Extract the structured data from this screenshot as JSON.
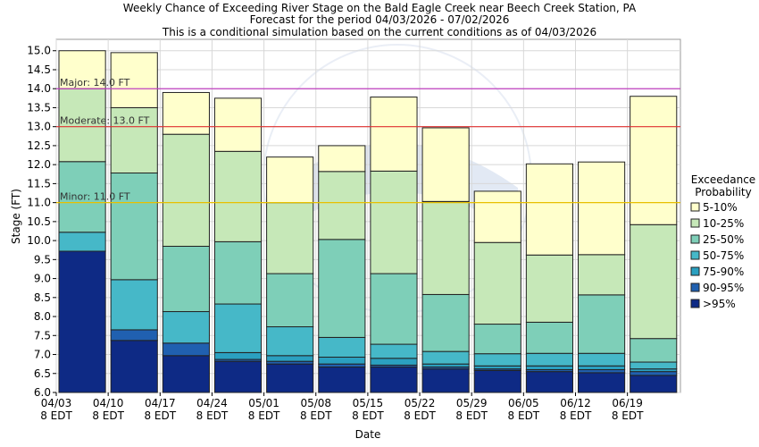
{
  "title_lines": [
    "Weekly Chance of Exceeding River Stage on the Bald Eagle Creek near Beech Creek Station, PA",
    "Forecast for the period 04/03/2026 - 07/02/2026",
    "This is a conditional simulation based on the current conditions as of 04/03/2026"
  ],
  "chart_data": {
    "type": "bar",
    "stacked": true,
    "xlabel": "Date",
    "ylabel": "Stage (FT)",
    "ylim": [
      6.0,
      15.3
    ],
    "yticks": [
      6.0,
      6.5,
      7.0,
      7.5,
      8.0,
      8.5,
      9.0,
      9.5,
      10.0,
      10.5,
      11.0,
      11.5,
      12.0,
      12.5,
      13.0,
      13.5,
      14.0,
      14.5,
      15.0
    ],
    "ytick_labels": [
      "6.0",
      "6.5",
      "7.0",
      "7.5",
      "8.0",
      "8.5",
      "9.0",
      "9.5",
      "10.0",
      "10.5",
      "11.0",
      "11.5",
      "12.0",
      "12.5",
      "13.0",
      "13.5",
      "14.0",
      "14.5",
      "15.0"
    ],
    "xtick_labels": [
      [
        "04/03",
        "8 EDT"
      ],
      [
        "04/10",
        "8 EDT"
      ],
      [
        "04/17",
        "8 EDT"
      ],
      [
        "04/24",
        "8 EDT"
      ],
      [
        "05/01",
        "8 EDT"
      ],
      [
        "05/08",
        "8 EDT"
      ],
      [
        "05/15",
        "8 EDT"
      ],
      [
        "05/22",
        "8 EDT"
      ],
      [
        "05/29",
        "8 EDT"
      ],
      [
        "06/05",
        "8 EDT"
      ],
      [
        "06/12",
        "8 EDT"
      ],
      [
        "06/19",
        "8 EDT"
      ]
    ],
    "grid": true,
    "legend_title": [
      "Exceedance",
      "Probability"
    ],
    "legend_position": "right",
    "series": [
      {
        "name": ">95%",
        "color": "#0e2a85",
        "tops": [
          9.72,
          7.37,
          6.97,
          6.82,
          6.75,
          6.67,
          6.67,
          6.62,
          6.58,
          6.55,
          6.52,
          6.45
        ]
      },
      {
        "name": "90-95%",
        "color": "#2060b0",
        "tops": [
          9.72,
          7.65,
          7.3,
          6.87,
          6.82,
          6.75,
          6.72,
          6.67,
          6.62,
          6.6,
          6.6,
          6.55
        ]
      },
      {
        "name": "75-90%",
        "color": "#2ba0c0",
        "tops": [
          9.72,
          7.65,
          7.3,
          7.05,
          6.97,
          6.93,
          6.9,
          6.75,
          6.7,
          6.7,
          6.7,
          6.62
        ]
      },
      {
        "name": "50-75%",
        "color": "#46b8c8",
        "tops": [
          10.22,
          8.97,
          8.13,
          8.33,
          7.73,
          7.45,
          7.27,
          7.08,
          7.02,
          7.03,
          7.03,
          6.8
        ]
      },
      {
        "name": "25-50%",
        "color": "#7ecfb8",
        "tops": [
          12.08,
          11.78,
          9.85,
          9.97,
          9.13,
          10.03,
          9.13,
          8.58,
          7.8,
          7.85,
          8.57,
          7.42
        ]
      },
      {
        "name": "10-25%",
        "color": "#c6e8b8",
        "tops": [
          14.0,
          13.5,
          12.8,
          12.35,
          11.0,
          11.82,
          11.83,
          11.03,
          9.95,
          9.62,
          9.63,
          10.42
        ]
      },
      {
        "name": "5-10%",
        "color": "#ffffcc",
        "tops": [
          15.0,
          14.95,
          13.9,
          13.75,
          12.2,
          12.5,
          13.78,
          12.97,
          11.3,
          12.02,
          12.07,
          13.8
        ]
      }
    ],
    "flood_levels": [
      {
        "label": "Major: 14.0 FT",
        "value": 14.0,
        "color": "#c040c0"
      },
      {
        "label": "Moderate: 13.0 FT",
        "value": 13.0,
        "color": "#e03030"
      },
      {
        "label": "Minor: 11.0 FT",
        "value": 11.0,
        "color": "#e8c000"
      }
    ]
  }
}
